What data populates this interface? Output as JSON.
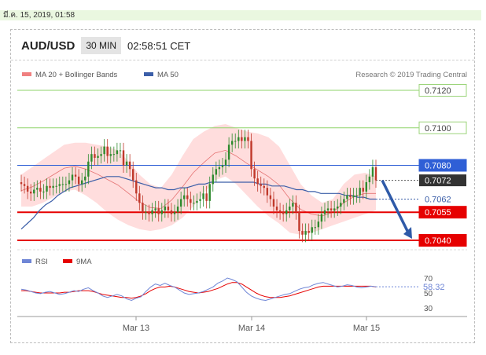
{
  "timestamp": "มี.ค. 15, 2019, 01:58",
  "header": {
    "pair": "AUD/USD",
    "timeframe": "30 MIN",
    "time": "02:58:51 CET"
  },
  "legend": {
    "bollinger": "MA 20 + Bollinger Bands",
    "ma50": "MA 50",
    "credit": "Research © 2019 Trading Central"
  },
  "colors": {
    "up": "#2e8b2e",
    "down": "#c0392b",
    "bands": "#ffb3b3",
    "ma50": "#3b5ea8",
    "level_green": "#8fd36a",
    "level_red": "#e60000",
    "level_blue": "#2f5fd6",
    "rsi": "#6f86d6",
    "rsi_ma": "#e60000",
    "arrow": "#2f5aa8"
  },
  "chart_data": [
    {
      "type": "candlestick",
      "title": "AUD/USD 30 MIN",
      "ylim": [
        0.7036,
        0.7128
      ],
      "x_ticks": [
        "Mar 13",
        "Mar 14",
        "Mar 15"
      ],
      "levels": [
        {
          "label": "0.7120",
          "value": 0.712,
          "color": "level_green"
        },
        {
          "label": "0.7100",
          "value": 0.71,
          "color": "level_green"
        },
        {
          "label": "0.7080",
          "value": 0.708,
          "color": "level_blue"
        },
        {
          "label": "0.7072",
          "value": 0.7072,
          "color": "current"
        },
        {
          "label": "0.7062",
          "value": 0.7062,
          "color": "ma50_tag"
        },
        {
          "label": "0.7055",
          "value": 0.7055,
          "color": "level_red"
        },
        {
          "label": "0.7040",
          "value": 0.704,
          "color": "level_red"
        }
      ],
      "closes": [
        0.707,
        0.7069,
        0.7066,
        0.7065,
        0.7067,
        0.7068,
        0.7066,
        0.7066,
        0.7069,
        0.7068,
        0.7069,
        0.7069,
        0.707,
        0.707,
        0.707,
        0.7072,
        0.7075,
        0.7074,
        0.707,
        0.7072,
        0.7074,
        0.7082,
        0.7086,
        0.7084,
        0.7085,
        0.7086,
        0.709,
        0.7085,
        0.7086,
        0.7086,
        0.7088,
        0.7088,
        0.708,
        0.7082,
        0.7078,
        0.7072,
        0.7065,
        0.706,
        0.7055,
        0.7055,
        0.7054,
        0.7056,
        0.7057,
        0.7054,
        0.7056,
        0.7058,
        0.7056,
        0.7054,
        0.7055,
        0.7058,
        0.7062,
        0.7064,
        0.7062,
        0.706,
        0.706,
        0.7061,
        0.7062,
        0.7065,
        0.7061,
        0.707,
        0.7075,
        0.7078,
        0.7079,
        0.708,
        0.7083,
        0.7091,
        0.7093,
        0.7093,
        0.7095,
        0.7093,
        0.7095,
        0.7093,
        0.7078,
        0.7073,
        0.707,
        0.7069,
        0.7068,
        0.7064,
        0.7062,
        0.7058,
        0.7056,
        0.7055,
        0.7054,
        0.7056,
        0.7058,
        0.706,
        0.7055,
        0.7045,
        0.7043,
        0.7045,
        0.7044,
        0.7047,
        0.7047,
        0.705,
        0.7054,
        0.7056,
        0.7057,
        0.7056,
        0.7057,
        0.7058,
        0.706,
        0.7062,
        0.7064,
        0.7063,
        0.7064,
        0.7064,
        0.7068,
        0.7066,
        0.7071,
        0.7074,
        0.7079,
        0.7072
      ],
      "ma50": [
        0.7046,
        0.7049,
        0.7052,
        0.7056,
        0.7059,
        0.7061,
        0.7064,
        0.7066,
        0.7068,
        0.7069,
        0.707,
        0.7071,
        0.7072,
        0.7073,
        0.7074,
        0.7074,
        0.7074,
        0.7073,
        0.7072,
        0.7071,
        0.707,
        0.7069,
        0.7068,
        0.7068,
        0.7067,
        0.7067,
        0.7068,
        0.7068,
        0.7069,
        0.707,
        0.707,
        0.7071,
        0.7071,
        0.7071,
        0.7071,
        0.7071,
        0.7071,
        0.7071,
        0.7071,
        0.707,
        0.707,
        0.7069,
        0.7069,
        0.7069,
        0.7068,
        0.7067,
        0.7067,
        0.7066,
        0.7066,
        0.7065,
        0.7065,
        0.7065,
        0.7065,
        0.7064,
        0.7064,
        0.7063,
        0.7063,
        0.7062,
        0.7062
      ],
      "bb_upper": [
        0.7075,
        0.7079,
        0.7083,
        0.7087,
        0.7091,
        0.7092,
        0.7092,
        0.7091,
        0.709,
        0.7088,
        0.7082,
        0.7075,
        0.707,
        0.7068,
        0.7075,
        0.7085,
        0.7094,
        0.7098,
        0.7101,
        0.7102,
        0.71,
        0.7098,
        0.7097,
        0.7095,
        0.709,
        0.708,
        0.707,
        0.7064,
        0.706,
        0.7062,
        0.707,
        0.7075,
        0.7076,
        0.7074
      ],
      "bb_lower": [
        0.7058,
        0.7058,
        0.706,
        0.7063,
        0.7066,
        0.7067,
        0.7064,
        0.706,
        0.7055,
        0.7051,
        0.7048,
        0.7046,
        0.7045,
        0.7046,
        0.7048,
        0.7052,
        0.7058,
        0.7065,
        0.7072,
        0.7074,
        0.707,
        0.7064,
        0.7058,
        0.7053,
        0.7049,
        0.7044,
        0.7043,
        0.7044,
        0.7046,
        0.7048,
        0.705,
        0.7052,
        0.7054,
        0.7056
      ],
      "forecast_arrow": {
        "from": 0.7072,
        "to": 0.704
      }
    },
    {
      "type": "line",
      "title": "RSI",
      "series": [
        {
          "name": "RSI",
          "color": "rsi"
        },
        {
          "name": "9MA",
          "color": "rsi_ma"
        }
      ],
      "ylim": [
        25,
        75
      ],
      "y_ticks": [
        "70",
        "50",
        "30"
      ],
      "last_value_label": "58.32",
      "rsi": [
        55,
        54,
        52,
        50,
        49,
        51,
        52,
        50,
        48,
        49,
        51,
        53,
        52,
        55,
        57,
        53,
        50,
        46,
        44,
        46,
        48,
        46,
        42,
        40,
        43,
        45,
        52,
        58,
        62,
        60,
        63,
        60,
        58,
        54,
        50,
        48,
        49,
        50,
        52,
        55,
        58,
        63,
        66,
        70,
        68,
        65,
        58,
        51,
        46,
        43,
        41,
        40,
        42,
        44,
        46,
        48,
        49,
        52,
        55,
        57,
        58,
        61,
        63,
        64,
        62,
        60,
        58,
        59,
        61,
        60,
        58,
        57,
        58,
        59,
        58.32
      ],
      "rsi_ma": [
        53,
        53,
        52,
        51,
        50,
        50,
        50,
        50,
        50,
        51,
        51,
        52,
        53,
        53,
        53,
        52,
        50,
        48,
        47,
        46,
        45,
        44,
        44,
        43,
        44,
        46,
        49,
        53,
        56,
        58,
        58,
        59,
        58,
        56,
        54,
        52,
        51,
        50,
        51,
        52,
        54,
        56,
        59,
        62,
        64,
        64,
        62,
        58,
        54,
        50,
        47,
        45,
        44,
        44,
        44,
        45,
        46,
        48,
        50,
        52,
        54,
        56,
        58,
        59,
        59,
        59,
        59,
        59,
        59,
        59,
        59,
        59,
        59,
        59,
        58
      ]
    }
  ]
}
